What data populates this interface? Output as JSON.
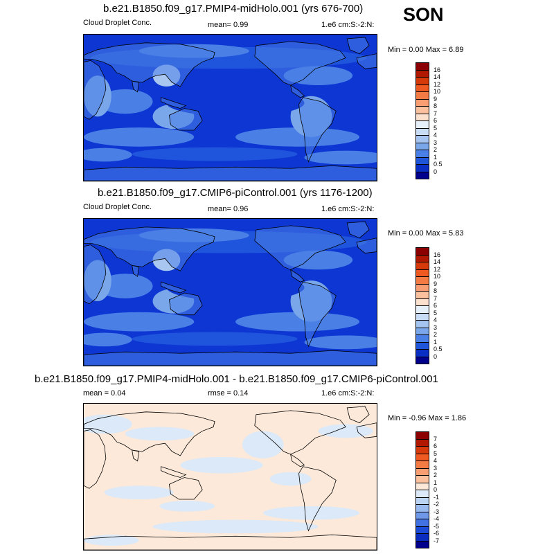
{
  "season": "SON",
  "panels": [
    {
      "title": "b.e21.B1850.f09_g17.PMIP4-midHolo.001 (yrs 676-700)",
      "variable": "Cloud Droplet Conc.",
      "stat": "mean=   0.99",
      "units": "1.e6 cm:S:-2:N:",
      "minmax": "Min =   0.00 Max =   6.89",
      "legend": {
        "labels": [
          "16",
          "14",
          "12",
          "10",
          "9",
          "8",
          "7",
          "6",
          "5",
          "4",
          "3",
          "2",
          "1",
          "0.5",
          "0"
        ],
        "colors": [
          "#8b0000",
          "#b01800",
          "#d63a0a",
          "#ee5a22",
          "#f47c44",
          "#f89e72",
          "#fbc09e",
          "#fde1cf",
          "#e6f0fb",
          "#c8dcf6",
          "#a5c4f0",
          "#7aa6ea",
          "#4a7fe6",
          "#1f55d9",
          "#0a2fc4",
          "#00008c"
        ]
      },
      "field": {
        "base": "#0d36d2",
        "mid": "#1f55dc",
        "light": "#4a7fe6",
        "lighter": "#7aa6ea",
        "pale": "#a8c6f0"
      }
    },
    {
      "title": "b.e21.B1850.f09_g17.CMIP6-piControl.001 (yrs 1176-1200)",
      "variable": "Cloud Droplet Conc.",
      "stat": "mean=   0.96",
      "units": "1.e6 cm:S:-2:N:",
      "minmax": "Min =   0.00 Max =   5.83",
      "legend": {
        "labels": [
          "16",
          "14",
          "12",
          "10",
          "9",
          "8",
          "7",
          "6",
          "5",
          "4",
          "3",
          "2",
          "1",
          "0.5",
          "0"
        ],
        "colors": [
          "#8b0000",
          "#b01800",
          "#d63a0a",
          "#ee5a22",
          "#f47c44",
          "#f89e72",
          "#fbc09e",
          "#fde1cf",
          "#e6f0fb",
          "#c8dcf6",
          "#a5c4f0",
          "#7aa6ea",
          "#4a7fe6",
          "#1f55d9",
          "#0a2fc4",
          "#00008c"
        ]
      },
      "field": {
        "base": "#0d36d2",
        "mid": "#1f55dc",
        "light": "#4a7fe6",
        "lighter": "#7aa6ea",
        "pale": "#a8c6f0"
      }
    },
    {
      "title": "b.e21.B1850.f09_g17.PMIP4-midHolo.001 - b.e21.B1850.f09_g17.CMIP6-piControl.001",
      "variable": "mean =   0.04",
      "stat": "rmse =   0.14",
      "units": "1.e6 cm:S:-2:N:",
      "minmax": "Min =  -0.96 Max =   1.86",
      "legend": {
        "labels": [
          "7",
          "6",
          "5",
          "4",
          "3",
          "2",
          "1",
          "0",
          "-1",
          "-2",
          "-3",
          "-4",
          "-5",
          "-6",
          "-7"
        ],
        "colors": [
          "#8b0000",
          "#b01800",
          "#d63a0a",
          "#ee5a22",
          "#f47c44",
          "#f89e72",
          "#fbc09e",
          "#fde9d9",
          "#dbe9f8",
          "#bcd4f4",
          "#98baee",
          "#6f99e8",
          "#4272e2",
          "#1a4ad6",
          "#0a2cbf",
          "#00008c"
        ]
      },
      "field": {
        "base": "#fde9d9",
        "mid": "#dbe9f8",
        "light": "#dbe9f8",
        "lighter": "#fde9d9",
        "pale": "#dbe9f8"
      }
    }
  ]
}
